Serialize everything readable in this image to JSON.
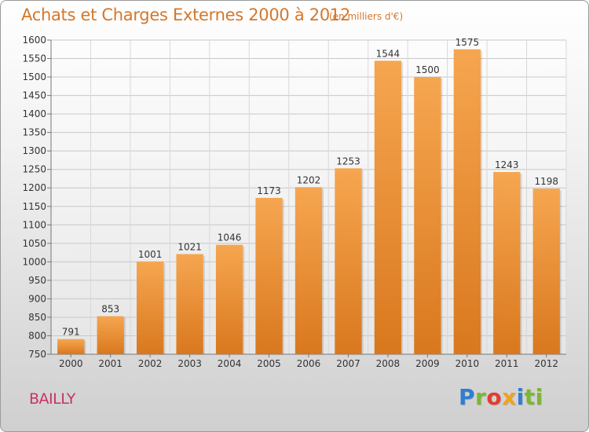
{
  "header": {
    "title": "Achats et Charges Externes 2000 à 2012",
    "unit": "(en milliers d'€)"
  },
  "footer": {
    "commune": "BAILLY",
    "logo_letters": [
      "P",
      "r",
      "o",
      "x",
      "i",
      "ti"
    ]
  },
  "colors": {
    "bar_light": "#f6a650",
    "bar_dark": "#d9781e",
    "title": "#d4772a",
    "commune": "#c43464"
  },
  "chart_data": {
    "type": "bar",
    "title": "Achats et Charges Externes 2000 à 2012",
    "categories": [
      "2000",
      "2001",
      "2002",
      "2003",
      "2004",
      "2005",
      "2006",
      "2007",
      "2008",
      "2009",
      "2010",
      "2011",
      "2012"
    ],
    "values": [
      791,
      853,
      1001,
      1021,
      1046,
      1173,
      1202,
      1253,
      1544,
      1500,
      1575,
      1243,
      1198
    ],
    "ylim": [
      750,
      1600
    ],
    "yticks": [
      750,
      800,
      850,
      900,
      950,
      1000,
      1050,
      1100,
      1150,
      1200,
      1250,
      1300,
      1350,
      1400,
      1450,
      1500,
      1550,
      1600
    ],
    "grid": true,
    "data_labels": true
  }
}
